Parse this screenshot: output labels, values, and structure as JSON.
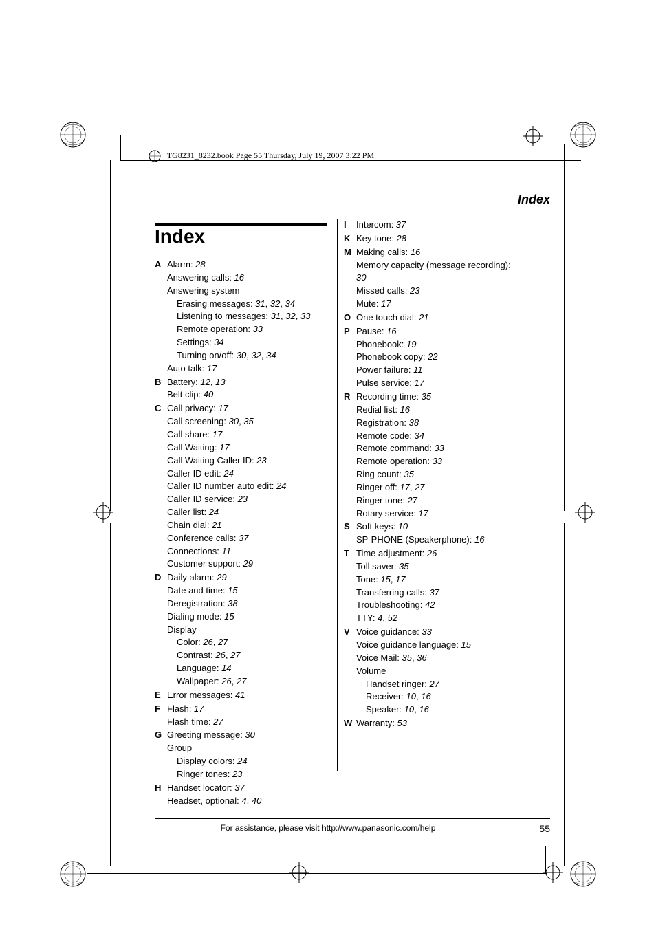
{
  "header": {
    "book_info": "TG8231_8232.book  Page 55  Thursday, July 19, 2007  3:22 PM"
  },
  "section_title": "Index",
  "main_heading": "Index",
  "footer": {
    "text": "For assistance, please visit http://www.panasonic.com/help",
    "page": "55"
  },
  "print_marks": {
    "crosshair_svg_color": "#000000",
    "globe_svg_color": "#000000"
  },
  "index_left": [
    {
      "letter": "A",
      "lines": [
        {
          "label": "Alarm",
          "pages": "28"
        },
        {
          "label": "Answering calls",
          "pages": "16"
        },
        {
          "label": "Answering system",
          "pages": ""
        },
        {
          "label": "Erasing messages",
          "pages": "31, 32, 34",
          "sub": true
        },
        {
          "label": "Listening to messages",
          "pages": "31, 32, 33",
          "sub": true
        },
        {
          "label": "Remote operation",
          "pages": "33",
          "sub": true
        },
        {
          "label": "Settings",
          "pages": "34",
          "sub": true
        },
        {
          "label": "Turning on/off",
          "pages": "30, 32, 34",
          "sub": true
        },
        {
          "label": "Auto talk",
          "pages": "17"
        }
      ]
    },
    {
      "letter": "B",
      "lines": [
        {
          "label": "Battery",
          "pages": "12, 13"
        },
        {
          "label": "Belt clip",
          "pages": "40"
        }
      ]
    },
    {
      "letter": "C",
      "lines": [
        {
          "label": "Call privacy",
          "pages": "17"
        },
        {
          "label": "Call screening",
          "pages": "30, 35"
        },
        {
          "label": "Call share",
          "pages": "17"
        },
        {
          "label": "Call Waiting",
          "pages": "17"
        },
        {
          "label": "Call Waiting Caller ID",
          "pages": "23"
        },
        {
          "label": "Caller ID edit",
          "pages": "24"
        },
        {
          "label": "Caller ID number auto edit",
          "pages": "24"
        },
        {
          "label": "Caller ID service",
          "pages": "23"
        },
        {
          "label": "Caller list",
          "pages": "24"
        },
        {
          "label": "Chain dial",
          "pages": "21"
        },
        {
          "label": "Conference calls",
          "pages": "37"
        },
        {
          "label": "Connections",
          "pages": "11"
        },
        {
          "label": "Customer support",
          "pages": "29"
        }
      ]
    },
    {
      "letter": "D",
      "lines": [
        {
          "label": "Daily alarm",
          "pages": "29"
        },
        {
          "label": "Date and time",
          "pages": "15"
        },
        {
          "label": "Deregistration",
          "pages": "38"
        },
        {
          "label": "Dialing mode",
          "pages": "15"
        },
        {
          "label": "Display",
          "pages": ""
        },
        {
          "label": "Color",
          "pages": "26, 27",
          "sub": true
        },
        {
          "label": "Contrast",
          "pages": "26, 27",
          "sub": true
        },
        {
          "label": "Language",
          "pages": "14",
          "sub": true
        },
        {
          "label": "Wallpaper",
          "pages": "26, 27",
          "sub": true
        }
      ]
    },
    {
      "letter": "E",
      "lines": [
        {
          "label": "Error messages",
          "pages": "41"
        }
      ]
    },
    {
      "letter": "F",
      "lines": [
        {
          "label": "Flash",
          "pages": "17"
        },
        {
          "label": "Flash time",
          "pages": "27"
        }
      ]
    },
    {
      "letter": "G",
      "lines": [
        {
          "label": "Greeting message",
          "pages": "30"
        },
        {
          "label": "Group",
          "pages": ""
        },
        {
          "label": "Display colors",
          "pages": "24",
          "sub": true
        },
        {
          "label": "Ringer tones",
          "pages": "23",
          "sub": true
        }
      ]
    },
    {
      "letter": "H",
      "lines": [
        {
          "label": "Handset locator",
          "pages": "37"
        },
        {
          "label": "Headset, optional",
          "pages": "4, 40"
        }
      ]
    }
  ],
  "index_right": [
    {
      "letter": "I",
      "lines": [
        {
          "label": "Intercom",
          "pages": "37"
        }
      ]
    },
    {
      "letter": "K",
      "lines": [
        {
          "label": "Key tone",
          "pages": "28"
        }
      ]
    },
    {
      "letter": "M",
      "lines": [
        {
          "label": "Making calls",
          "pages": "16"
        },
        {
          "label": "Memory capacity (message recording)",
          "pages": "30"
        },
        {
          "label": "Missed calls",
          "pages": "23"
        },
        {
          "label": "Mute",
          "pages": "17"
        }
      ]
    },
    {
      "letter": "O",
      "lines": [
        {
          "label": "One touch dial",
          "pages": "21"
        }
      ]
    },
    {
      "letter": "P",
      "lines": [
        {
          "label": "Pause",
          "pages": "16"
        },
        {
          "label": "Phonebook",
          "pages": "19"
        },
        {
          "label": "Phonebook copy",
          "pages": "22"
        },
        {
          "label": "Power failure",
          "pages": "11"
        },
        {
          "label": "Pulse service",
          "pages": "17"
        }
      ]
    },
    {
      "letter": "R",
      "lines": [
        {
          "label": "Recording time",
          "pages": "35"
        },
        {
          "label": "Redial list",
          "pages": "16"
        },
        {
          "label": "Registration",
          "pages": "38"
        },
        {
          "label": "Remote code",
          "pages": "34"
        },
        {
          "label": "Remote command",
          "pages": "33"
        },
        {
          "label": "Remote operation",
          "pages": "33"
        },
        {
          "label": "Ring count",
          "pages": "35"
        },
        {
          "label": "Ringer off",
          "pages": "17, 27"
        },
        {
          "label": "Ringer tone",
          "pages": "27"
        },
        {
          "label": "Rotary service",
          "pages": "17"
        }
      ]
    },
    {
      "letter": "S",
      "lines": [
        {
          "label": "Soft keys",
          "pages": "10"
        },
        {
          "label": "SP-PHONE (Speakerphone)",
          "pages": "16"
        }
      ]
    },
    {
      "letter": "T",
      "lines": [
        {
          "label": "Time adjustment",
          "pages": "26"
        },
        {
          "label": "Toll saver",
          "pages": "35"
        },
        {
          "label": "Tone",
          "pages": "15, 17"
        },
        {
          "label": "Transferring calls",
          "pages": "37"
        },
        {
          "label": "Troubleshooting",
          "pages": "42"
        },
        {
          "label": "TTY",
          "pages": "4, 52"
        }
      ]
    },
    {
      "letter": "V",
      "lines": [
        {
          "label": "Voice guidance",
          "pages": "33"
        },
        {
          "label": "Voice guidance language",
          "pages": "15"
        },
        {
          "label": "Voice Mail",
          "pages": "35, 36"
        },
        {
          "label": "Volume",
          "pages": ""
        },
        {
          "label": "Handset ringer",
          "pages": "27",
          "sub": true
        },
        {
          "label": "Receiver",
          "pages": "10, 16",
          "sub": true
        },
        {
          "label": "Speaker",
          "pages": "10, 16",
          "sub": true
        }
      ]
    },
    {
      "letter": "W",
      "lines": [
        {
          "label": "Warranty",
          "pages": "53"
        }
      ]
    }
  ]
}
